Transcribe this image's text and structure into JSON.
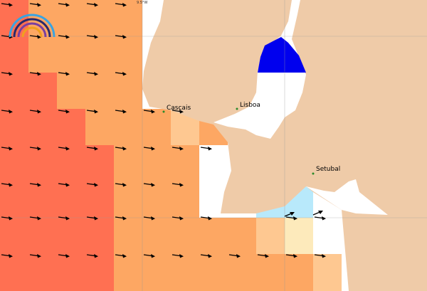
{
  "map": {
    "longitude_label": "9.5°W",
    "places": [
      "Cascais",
      "Lisboa",
      "Setubal"
    ]
  }
}
